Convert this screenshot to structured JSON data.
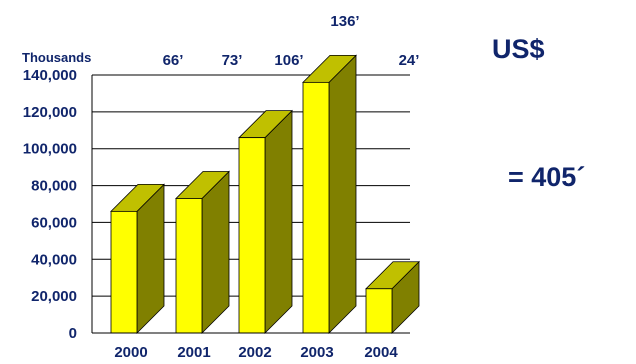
{
  "chart_data": {
    "type": "bar",
    "style": "3d",
    "categories": [
      "2000",
      "2001",
      "2002",
      "2003",
      "2004"
    ],
    "values": [
      66000,
      73000,
      106000,
      136000,
      24000
    ],
    "data_labels": [
      "66’",
      "73’",
      "106’",
      "136’",
      "24’"
    ],
    "y_tick_labels": [
      "0",
      "20,000",
      "40,000",
      "60,000",
      "80,000",
      "100,000",
      "120,000",
      "140,000"
    ],
    "ylim": [
      0,
      140000
    ],
    "ylabel": "Thousands",
    "grid": true,
    "currency_label": "US$",
    "total_label": "= 405´",
    "colors": {
      "bar_front": "#ffff00",
      "bar_side": "#808000",
      "bar_top": "#c0c000",
      "text": "#10256b",
      "grid": "#000000"
    }
  }
}
